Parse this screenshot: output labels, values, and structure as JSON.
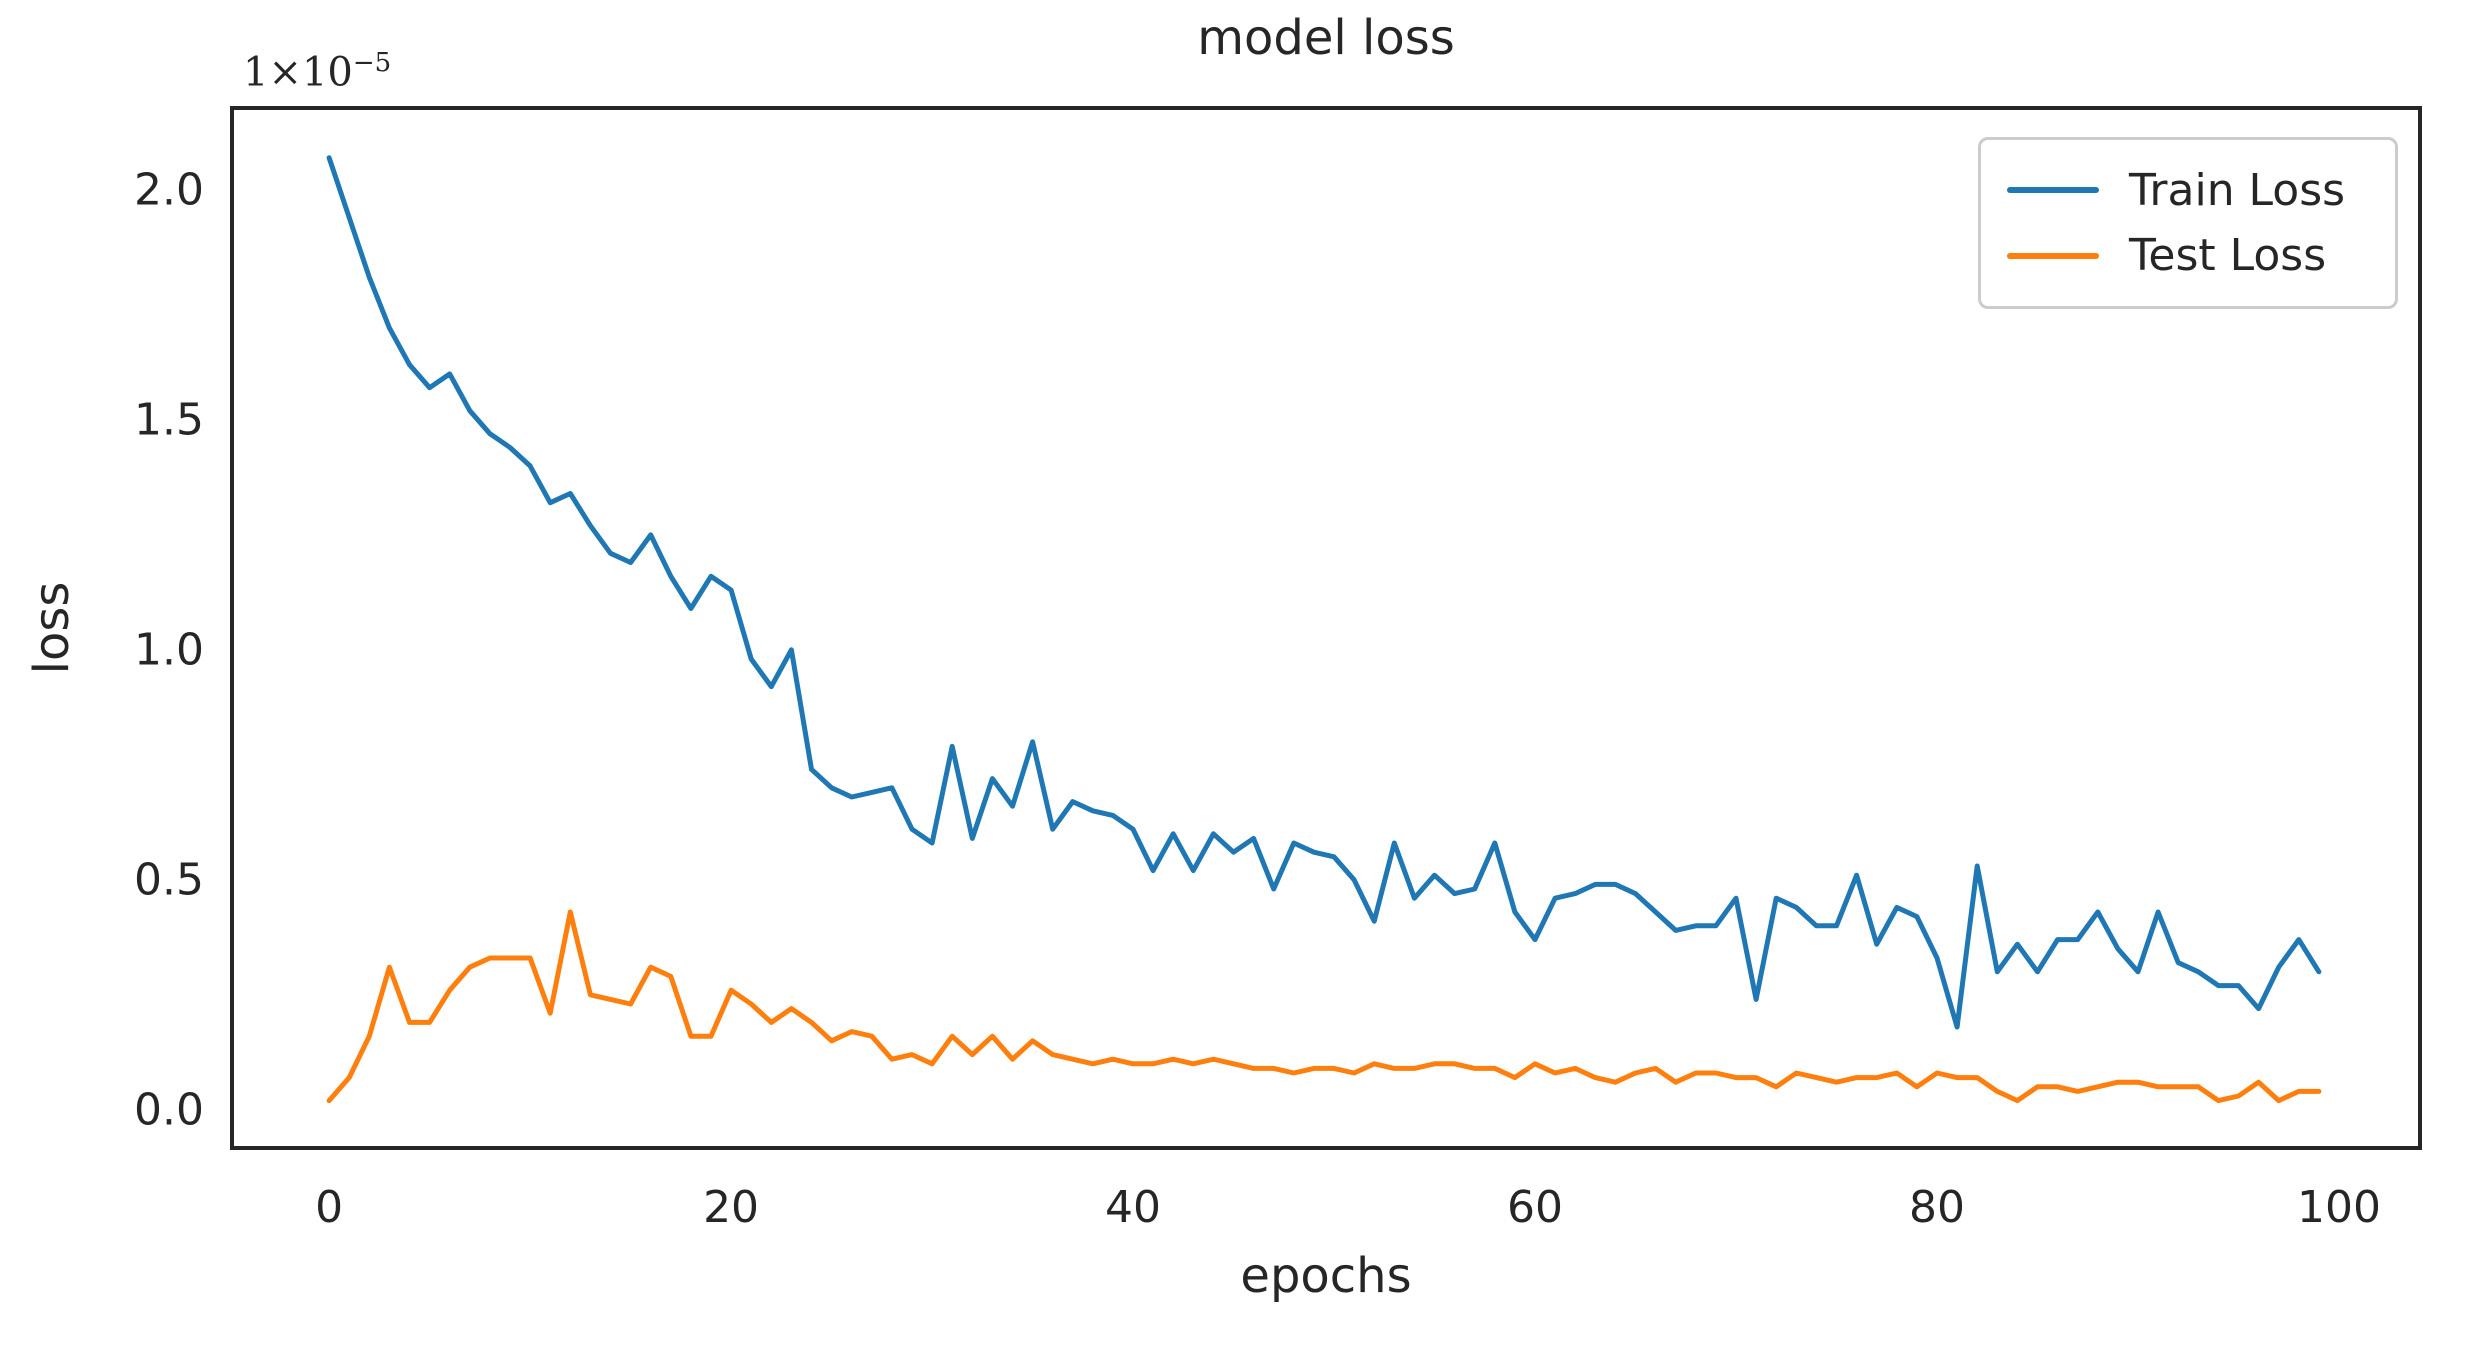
{
  "title": "model loss",
  "xlabel": "epochs",
  "ylabel": "loss",
  "offset_text": "1×10⁻⁵",
  "offset_base": "1×10",
  "offset_exp": "−5",
  "legend": {
    "entries": [
      {
        "label": "Train Loss",
        "color": "#1f77b4"
      },
      {
        "label": "Test Loss",
        "color": "#ff7f0e"
      }
    ]
  },
  "colors": {
    "train": "#1f77b4",
    "test": "#ff7f0e",
    "spine": "#262626",
    "text": "#262626",
    "legend_border": "#cccccc"
  },
  "chart_data": {
    "type": "line",
    "title": "model loss",
    "xlabel": "epochs",
    "ylabel": "loss",
    "y_scale_note": "values in units of 1e-5",
    "x": "epochs 0..99 (integer step 1)",
    "xlim": [
      -4.83,
      104.03
    ],
    "ylim": [
      -0.083,
      2.178
    ],
    "xticks": [
      0,
      20,
      40,
      60,
      80,
      100
    ],
    "yticks": [
      {
        "label": "0.0",
        "value": 0.0
      },
      {
        "label": "0.5",
        "value": 0.5
      },
      {
        "label": "1.0",
        "value": 1.0
      },
      {
        "label": "1.5",
        "value": 1.5
      },
      {
        "label": "2.0",
        "value": 2.0
      }
    ],
    "grid": false,
    "legend_position": "upper right",
    "series": [
      {
        "name": "Train Loss",
        "color": "#1f77b4",
        "values": [
          2.07,
          1.94,
          1.81,
          1.7,
          1.62,
          1.57,
          1.6,
          1.52,
          1.47,
          1.44,
          1.4,
          1.32,
          1.34,
          1.27,
          1.21,
          1.19,
          1.25,
          1.16,
          1.09,
          1.16,
          1.13,
          0.98,
          0.92,
          1.0,
          0.74,
          0.7,
          0.68,
          0.69,
          0.7,
          0.61,
          0.58,
          0.79,
          0.59,
          0.72,
          0.66,
          0.8,
          0.61,
          0.67,
          0.65,
          0.64,
          0.61,
          0.52,
          0.6,
          0.52,
          0.6,
          0.56,
          0.59,
          0.48,
          0.58,
          0.56,
          0.55,
          0.5,
          0.41,
          0.58,
          0.46,
          0.51,
          0.47,
          0.48,
          0.58,
          0.43,
          0.37,
          0.46,
          0.47,
          0.49,
          0.49,
          0.47,
          0.43,
          0.39,
          0.4,
          0.4,
          0.46,
          0.24,
          0.46,
          0.44,
          0.4,
          0.4,
          0.51,
          0.36,
          0.44,
          0.42,
          0.33,
          0.18,
          0.53,
          0.3,
          0.36,
          0.3,
          0.37,
          0.37,
          0.43,
          0.35,
          0.3,
          0.43,
          0.32,
          0.3,
          0.27,
          0.27,
          0.22,
          0.31,
          0.37,
          0.3
        ]
      },
      {
        "name": "Test Loss",
        "color": "#ff7f0e",
        "values": [
          0.02,
          0.07,
          0.16,
          0.31,
          0.19,
          0.19,
          0.26,
          0.31,
          0.33,
          0.33,
          0.33,
          0.21,
          0.43,
          0.25,
          0.24,
          0.23,
          0.31,
          0.29,
          0.16,
          0.16,
          0.26,
          0.23,
          0.19,
          0.22,
          0.19,
          0.15,
          0.17,
          0.16,
          0.11,
          0.12,
          0.1,
          0.16,
          0.12,
          0.16,
          0.11,
          0.15,
          0.12,
          0.11,
          0.1,
          0.11,
          0.1,
          0.1,
          0.11,
          0.1,
          0.11,
          0.1,
          0.09,
          0.09,
          0.08,
          0.09,
          0.09,
          0.08,
          0.1,
          0.09,
          0.09,
          0.1,
          0.1,
          0.09,
          0.09,
          0.07,
          0.1,
          0.08,
          0.09,
          0.07,
          0.06,
          0.08,
          0.09,
          0.06,
          0.08,
          0.08,
          0.07,
          0.07,
          0.05,
          0.08,
          0.07,
          0.06,
          0.07,
          0.07,
          0.08,
          0.05,
          0.08,
          0.07,
          0.07,
          0.04,
          0.02,
          0.05,
          0.05,
          0.04,
          0.05,
          0.06,
          0.06,
          0.05,
          0.05,
          0.05,
          0.02,
          0.03,
          0.06,
          0.02,
          0.04,
          0.04
        ]
      }
    ]
  }
}
